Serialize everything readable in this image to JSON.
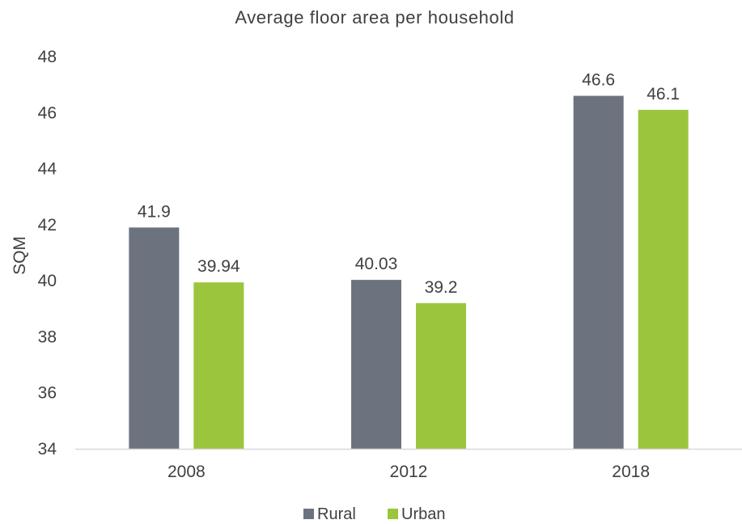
{
  "chart_data": {
    "type": "bar",
    "title": "Average floor area per household",
    "xlabel": "",
    "ylabel": "SQM",
    "categories": [
      "2008",
      "2012",
      "2018"
    ],
    "series": [
      {
        "name": "Rural",
        "color": "#6d737e",
        "values": [
          41.9,
          40.03,
          46.6
        ],
        "labels": [
          "41.9",
          "40.03",
          "46.6"
        ]
      },
      {
        "name": "Urban",
        "color": "#9bc53d",
        "values": [
          39.94,
          39.2,
          46.1
        ],
        "labels": [
          "39.94",
          "39.2",
          "46.1"
        ]
      }
    ],
    "ylim": [
      34,
      48
    ],
    "yticks": [
      "34",
      "36",
      "38",
      "40",
      "42",
      "44",
      "46",
      "48"
    ],
    "grid": false,
    "legend_position": "bottom",
    "axis_color": "#d9d9d9",
    "text_color": "#404040"
  }
}
